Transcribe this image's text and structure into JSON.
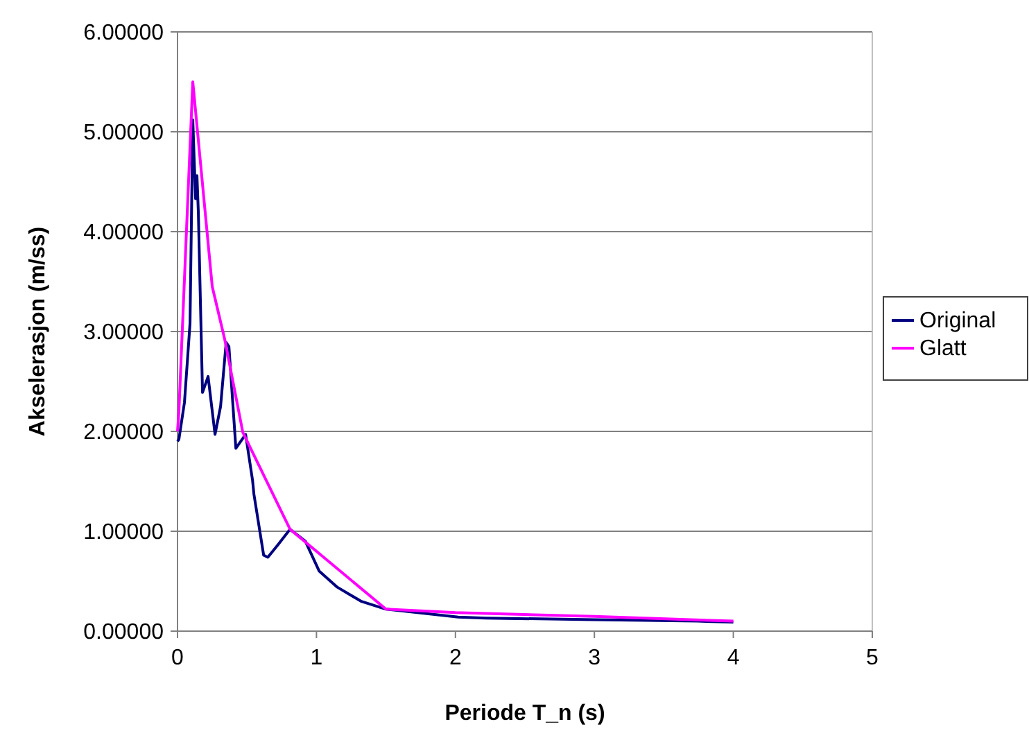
{
  "chart_data": {
    "type": "line",
    "xlabel": "Periode T_n (s)",
    "ylabel": "Akselerasjon (m/ss)",
    "xlim": [
      0,
      5
    ],
    "xticks": [
      0,
      1,
      2,
      3,
      4,
      5
    ],
    "ylim": [
      0,
      6
    ],
    "yticks": [
      {
        "value": 0,
        "label": "0.00000"
      },
      {
        "value": 1,
        "label": "1.00000"
      },
      {
        "value": 2,
        "label": "2.00000"
      },
      {
        "value": 3,
        "label": "3.00000"
      },
      {
        "value": 4,
        "label": "4.00000"
      },
      {
        "value": 5,
        "label": "5.00000"
      },
      {
        "value": 6,
        "label": "6.00000"
      }
    ],
    "grid": "y",
    "legend": "right",
    "marker": "none",
    "line_style": "solid",
    "series": [
      {
        "name": "Original",
        "color": "#000080",
        "x": [
          0,
          0.01,
          0.05,
          0.09,
          0.11,
          0.13,
          0.14,
          0.15,
          0.18,
          0.22,
          0.27,
          0.31,
          0.35,
          0.37,
          0.42,
          0.49,
          0.54,
          0.55,
          0.62,
          0.65,
          0.72,
          0.81,
          0.92,
          1.02,
          1.15,
          1.32,
          1.5,
          2.02,
          2.22,
          3,
          3.74,
          4
        ],
        "values": [
          1.9,
          1.92,
          2.29,
          3.08,
          5.12,
          4.33,
          4.56,
          4.19,
          2.39,
          2.55,
          1.97,
          2.25,
          2.89,
          2.85,
          1.83,
          1.97,
          1.51,
          1.37,
          0.76,
          0.74,
          0.86,
          1.02,
          0.9,
          0.6,
          0.44,
          0.3,
          0.22,
          0.14,
          0.13,
          0.115,
          0.1,
          0.09
        ]
      },
      {
        "name": "Glatt",
        "color": "#ff00ff",
        "x": [
          0,
          0.01,
          0.07,
          0.11,
          0.25,
          0.34,
          0.47,
          0.81,
          1.5,
          2,
          3,
          4
        ],
        "values": [
          2.0,
          2.2,
          4.19,
          5.5,
          3.45,
          2.92,
          1.99,
          1.02,
          0.22,
          0.185,
          0.148,
          0.1
        ]
      }
    ]
  }
}
